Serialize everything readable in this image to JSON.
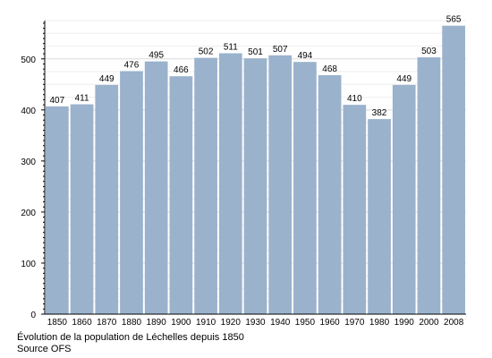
{
  "chart_data": {
    "type": "bar",
    "categories": [
      "1850",
      "1860",
      "1870",
      "1880",
      "1890",
      "1900",
      "1910",
      "1920",
      "1930",
      "1940",
      "1950",
      "1960",
      "1970",
      "1980",
      "1990",
      "2000",
      "2008"
    ],
    "values": [
      407,
      411,
      449,
      476,
      495,
      466,
      502,
      511,
      501,
      507,
      494,
      468,
      410,
      382,
      449,
      503,
      565
    ],
    "title": "",
    "xlabel": "",
    "ylabel": "",
    "ylim": [
      0,
      575
    ],
    "yticks": [
      0,
      100,
      200,
      300,
      400,
      500
    ],
    "grid": true,
    "bar_color": "#9ab2cc"
  },
  "caption": {
    "line1": "Évolution de la population de Léchelles depuis 1850",
    "line2": "Source OFS"
  }
}
